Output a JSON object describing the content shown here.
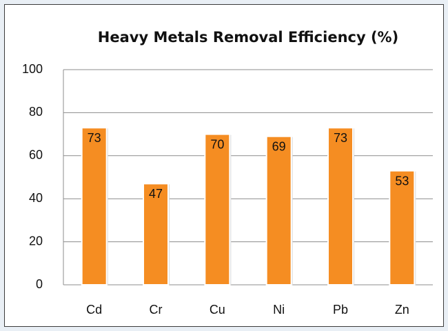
{
  "chart_data": {
    "type": "bar",
    "title": "Heavy Metals Removal Efficiency (%)",
    "categories": [
      "Cd",
      "Cr",
      "Cu",
      "Ni",
      "Pb",
      "Zn"
    ],
    "values": [
      73,
      47,
      70,
      69,
      73,
      53
    ],
    "color": "#f58d22",
    "ylim": [
      0,
      100
    ],
    "yticks": [
      0,
      20,
      40,
      60,
      80,
      100
    ],
    "grid": true
  }
}
